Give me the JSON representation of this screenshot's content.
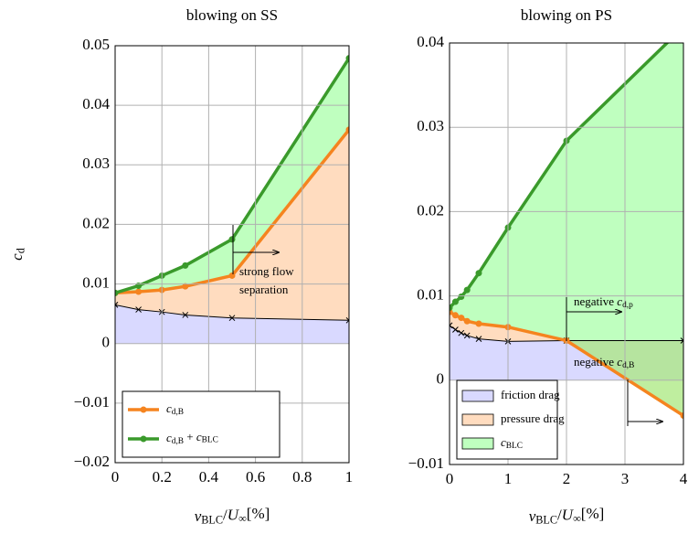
{
  "chart_data": [
    {
      "type": "line",
      "title": "blowing on SS",
      "xlabel": "vBLC/U∞[%]",
      "ylabel": "cd",
      "xlim": [
        0,
        1
      ],
      "xticks": [
        0,
        0.2,
        0.4,
        0.6,
        0.8,
        1
      ],
      "ylim": [
        -0.02,
        0.05
      ],
      "yticks": [
        {
          "value": -0.02,
          "label": "−0.02"
        },
        {
          "value": -0.01,
          "label": "−0.01"
        },
        0,
        0.01,
        0.02,
        0.03,
        0.04,
        0.05
      ],
      "grid": true,
      "legend": "lower left",
      "legend_style": "line",
      "series": [
        {
          "color": "#000000",
          "fill": "#b3b3ff",
          "marker": "x",
          "x": [
            0,
            0.1,
            0.2,
            0.3,
            0.5,
            1
          ],
          "values": [
            0.0065,
            0.0057,
            0.0053,
            0.0048,
            0.0043,
            0.0039
          ]
        },
        {
          "name": "cd,B",
          "color": "#f5841f",
          "fill": "#ffb980",
          "marker": "o",
          "x": [
            0,
            0.1,
            0.2,
            0.3,
            0.5,
            1
          ],
          "values": [
            0.0085,
            0.0087,
            0.009,
            0.0096,
            0.0114,
            0.0359
          ]
        },
        {
          "name": "cd,B + cBLC",
          "color": "#3a9a2b",
          "fill": "#80ff80",
          "marker": "o",
          "x": [
            0,
            0.1,
            0.2,
            0.3,
            0.5,
            1
          ],
          "values": [
            0.0085,
            0.0097,
            0.0114,
            0.0131,
            0.0175,
            0.0479
          ]
        }
      ],
      "annotations": [
        "strong flow",
        "separation"
      ]
    },
    {
      "type": "line",
      "title": "blowing on PS",
      "xlabel": "vBLC/U∞[%]",
      "xlim": [
        0,
        4
      ],
      "xticks": [
        0,
        1,
        2,
        3,
        4
      ],
      "ylim": [
        -0.01,
        0.04
      ],
      "yticks": [
        {
          "value": -0.01,
          "label": "−0.01"
        },
        0,
        0.01,
        0.02,
        0.03,
        0.04
      ],
      "grid": true,
      "legend": "lower left",
      "legend_style": "area",
      "series": [
        {
          "name": "friction drag",
          "color": "#000000",
          "fill": "#b3b3ff",
          "marker": "x",
          "x": [
            0,
            0.1,
            0.2,
            0.3,
            0.5,
            1,
            2,
            4
          ],
          "values": [
            0.0065,
            0.006,
            0.0056,
            0.0053,
            0.0049,
            0.0046,
            0.0047,
            0.0047
          ]
        },
        {
          "name": "pressure drag",
          "color": "#f5841f",
          "fill": "#ffb980",
          "marker": "o",
          "x": [
            0,
            0.1,
            0.2,
            0.3,
            0.5,
            1,
            2,
            4
          ],
          "values": [
            0.0081,
            0.0077,
            0.0074,
            0.007,
            0.0067,
            0.0063,
            0.0047,
            -0.0042
          ]
        },
        {
          "name": "cBLC",
          "color": "#3a9a2b",
          "fill": "#80ff80",
          "marker": "o",
          "x": [
            0,
            0.1,
            0.2,
            0.3,
            0.5,
            1,
            2,
            4
          ],
          "values": [
            0.0086,
            0.0093,
            0.0099,
            0.0107,
            0.0127,
            0.0181,
            0.0284,
            0.0419
          ]
        }
      ],
      "annotations": [
        "negative cd,p",
        "negative cd,B"
      ]
    }
  ]
}
